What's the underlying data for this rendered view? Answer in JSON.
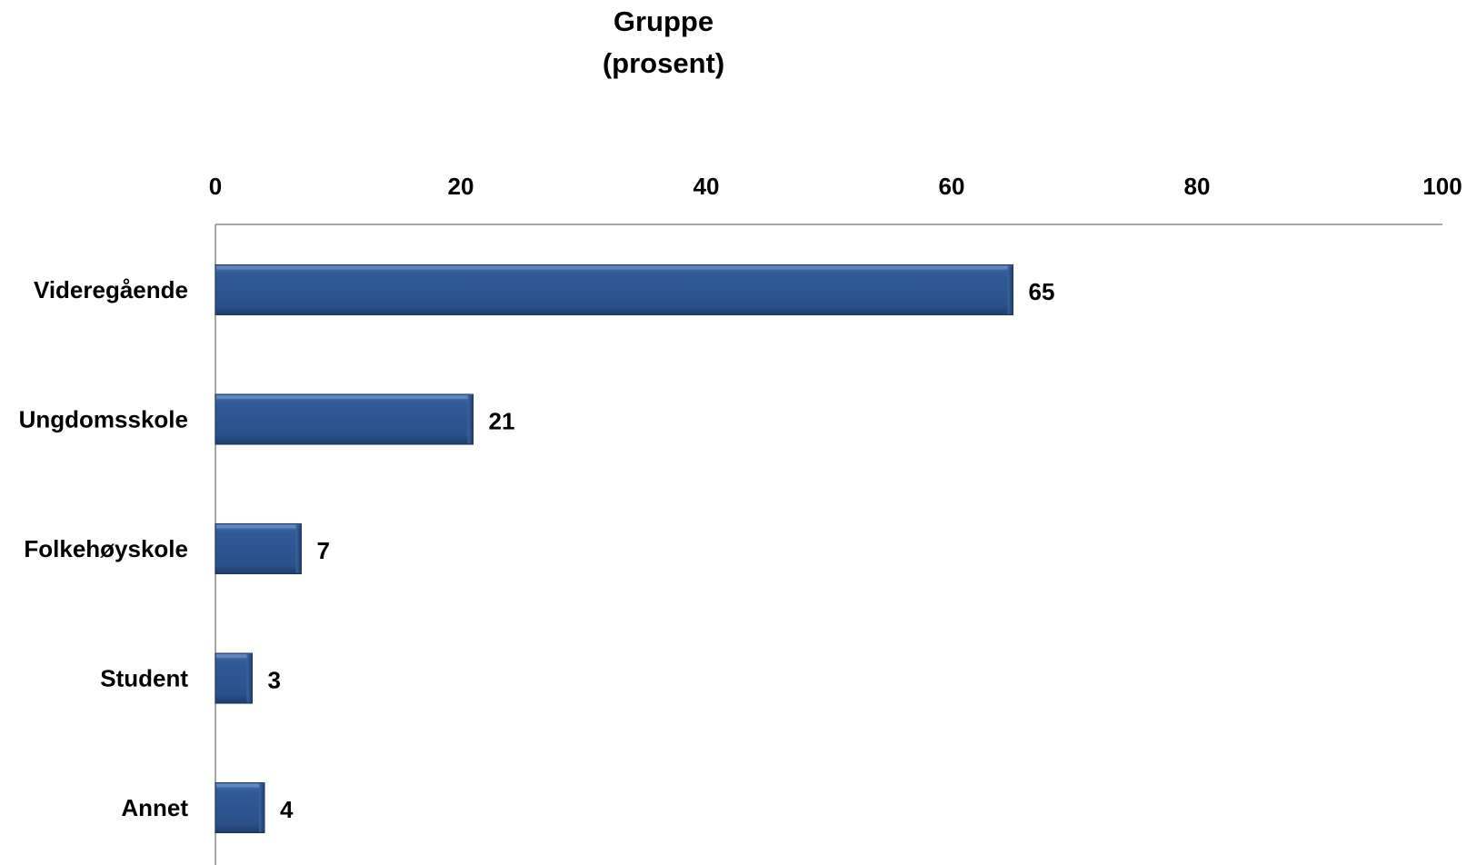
{
  "chart_data": {
    "type": "bar",
    "orientation": "horizontal",
    "title": [
      "Gruppe",
      "(prosent)"
    ],
    "categories": [
      "Videregående",
      "Ungdomsskole",
      "Folkehøyskole",
      "Student",
      "Annet"
    ],
    "values": [
      65,
      21,
      7,
      3,
      4
    ],
    "data_labels": [
      "65",
      "21",
      "7",
      "3",
      "4"
    ],
    "xlim": [
      0,
      100
    ],
    "ticks": [
      0,
      20,
      40,
      60,
      80,
      100
    ],
    "tick_labels": [
      "0",
      "20",
      "40",
      "60",
      "80",
      "100"
    ],
    "value_axis_position": "top",
    "grid": false,
    "legend": "none",
    "bar_color": "#2b5189",
    "bar_edge_color": "#1a3766",
    "axis_color": "#8c8c8c"
  }
}
